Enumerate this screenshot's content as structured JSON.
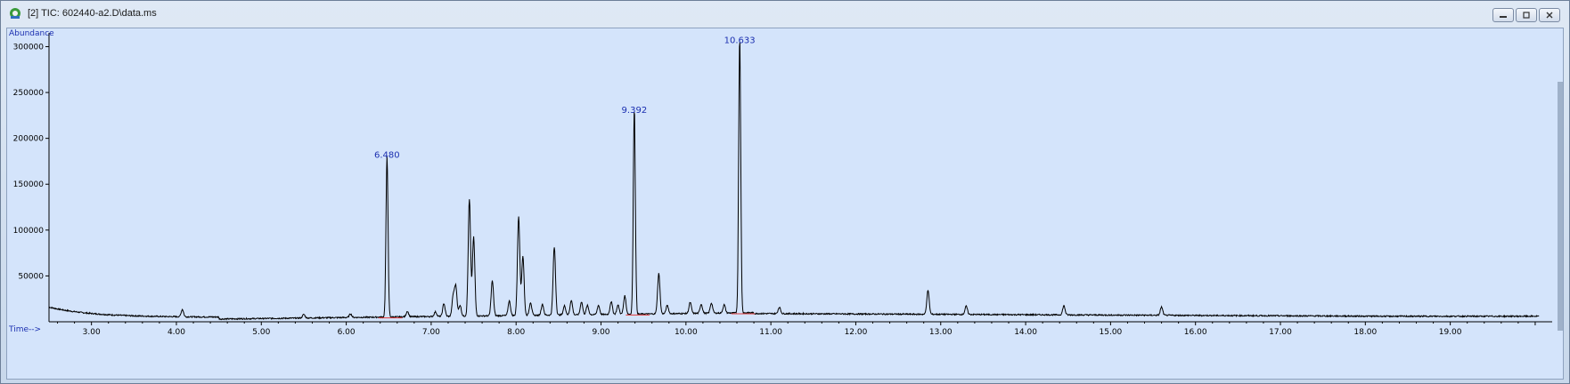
{
  "window": {
    "title": "[2] TIC: 602440-a2.D\\data.ms",
    "buttons": [
      {
        "name": "minimize-icon",
        "label": "minimize"
      },
      {
        "name": "restore-icon",
        "label": "restore"
      },
      {
        "name": "close-icon",
        "label": "close"
      }
    ]
  },
  "chart_data": {
    "type": "line",
    "ylabel": "Abundance",
    "xlabel": "Time-->",
    "xlim": [
      2.5,
      20.2
    ],
    "ylim": [
      0,
      315000
    ],
    "x_ticks": [
      "3.00",
      "4.00",
      "5.00",
      "6.00",
      "7.00",
      "8.00",
      "9.00",
      "10.00",
      "11.00",
      "12.00",
      "13.00",
      "14.00",
      "15.00",
      "16.00",
      "17.00",
      "18.00",
      "19.00"
    ],
    "y_ticks": [
      "50000",
      "100000",
      "150000",
      "200000",
      "250000",
      "300000"
    ],
    "peak_labels": [
      {
        "x": 6.48,
        "y": 175000,
        "label": "6.480"
      },
      {
        "x": 9.392,
        "y": 224000,
        "label": "9.392"
      },
      {
        "x": 10.633,
        "y": 300000,
        "label": "10.633"
      }
    ],
    "peaks": [
      {
        "x": 4.07,
        "y": 8000
      },
      {
        "x": 5.5,
        "y": 4000
      },
      {
        "x": 6.05,
        "y": 4000
      },
      {
        "x": 6.48,
        "y": 175000
      },
      {
        "x": 6.72,
        "y": 6000
      },
      {
        "x": 7.05,
        "y": 5000
      },
      {
        "x": 7.15,
        "y": 14000
      },
      {
        "x": 7.26,
        "y": 22000
      },
      {
        "x": 7.29,
        "y": 32000
      },
      {
        "x": 7.34,
        "y": 12000
      },
      {
        "x": 7.45,
        "y": 127000
      },
      {
        "x": 7.5,
        "y": 86000
      },
      {
        "x": 7.72,
        "y": 38000
      },
      {
        "x": 7.92,
        "y": 16000
      },
      {
        "x": 8.03,
        "y": 108000
      },
      {
        "x": 8.08,
        "y": 65000
      },
      {
        "x": 8.17,
        "y": 14000
      },
      {
        "x": 8.31,
        "y": 12000
      },
      {
        "x": 8.45,
        "y": 74000
      },
      {
        "x": 8.57,
        "y": 10000
      },
      {
        "x": 8.65,
        "y": 16000
      },
      {
        "x": 8.77,
        "y": 14000
      },
      {
        "x": 8.84,
        "y": 10000
      },
      {
        "x": 8.97,
        "y": 10000
      },
      {
        "x": 9.12,
        "y": 14000
      },
      {
        "x": 9.2,
        "y": 10000
      },
      {
        "x": 9.28,
        "y": 20000
      },
      {
        "x": 9.392,
        "y": 224000
      },
      {
        "x": 9.68,
        "y": 44000
      },
      {
        "x": 9.78,
        "y": 9000
      },
      {
        "x": 10.05,
        "y": 12000
      },
      {
        "x": 10.18,
        "y": 10000
      },
      {
        "x": 10.3,
        "y": 11000
      },
      {
        "x": 10.45,
        "y": 9000
      },
      {
        "x": 10.633,
        "y": 300000
      },
      {
        "x": 11.1,
        "y": 7000
      },
      {
        "x": 12.85,
        "y": 26000
      },
      {
        "x": 13.3,
        "y": 9000
      },
      {
        "x": 14.45,
        "y": 10000
      },
      {
        "x": 15.6,
        "y": 9000
      }
    ],
    "baseline": {
      "start": 16000,
      "mid": 5000,
      "end": 6000
    },
    "colors": {
      "trace": "#000000",
      "labels": "#1b2fb0",
      "baseline_marks": "#e03a3a",
      "axis": "#000000"
    }
  }
}
